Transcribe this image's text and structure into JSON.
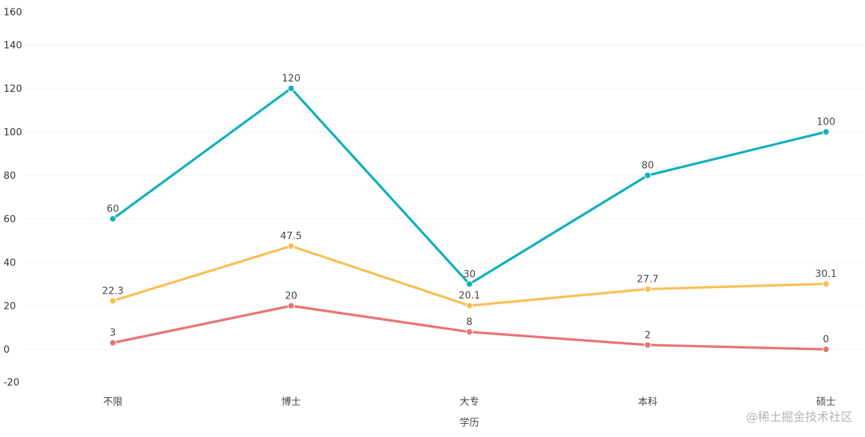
{
  "chart_data": {
    "type": "line",
    "xlabel": "学历",
    "ylabel": "",
    "categories": [
      "不限",
      "博士",
      "大专",
      "本科",
      "硕士"
    ],
    "yticks": [
      -20,
      0,
      20,
      40,
      60,
      80,
      100,
      120,
      140,
      160
    ],
    "ylim": [
      -20,
      160
    ],
    "grid": true,
    "series": [
      {
        "color": "#12b0bf",
        "values": [
          60,
          120,
          30,
          80,
          100
        ]
      },
      {
        "color": "#f8c055",
        "values": [
          22.3,
          47.5,
          20.1,
          27.7,
          30.1
        ]
      },
      {
        "color": "#ea7474",
        "values": [
          3,
          20,
          8,
          2,
          0
        ]
      }
    ]
  },
  "watermark": "@稀土掘金技术社区"
}
